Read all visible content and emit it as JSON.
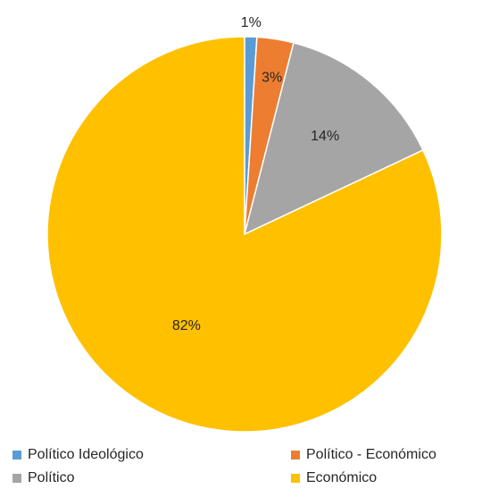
{
  "chart_data": {
    "type": "pie",
    "title": "",
    "slices": [
      {
        "label": "Político Ideológico",
        "value": 1,
        "display": "1%",
        "color": "#5B9BD5"
      },
      {
        "label": "Político - Económico",
        "value": 3,
        "display": "3%",
        "color": "#ED7D31"
      },
      {
        "label": "Político",
        "value": 14,
        "display": "14%",
        "color": "#A5A5A5"
      },
      {
        "label": "Económico",
        "value": 82,
        "display": "82%",
        "color": "#FFC000"
      }
    ],
    "legend_position": "bottom"
  }
}
